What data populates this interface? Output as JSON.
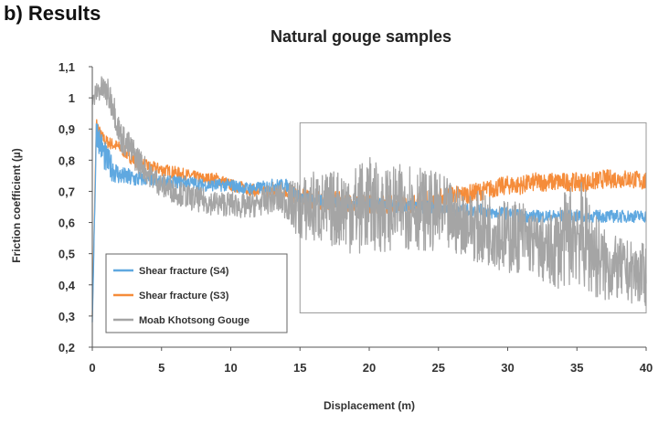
{
  "panel_label": "b) Results",
  "chart_data": {
    "type": "line",
    "title": "Natural gouge samples",
    "xlabel": "Displacement (m)",
    "ylabel": "Friction coefficient (µ)",
    "xlim": [
      0,
      40
    ],
    "ylim": [
      0.2,
      1.1
    ],
    "x_ticks": [
      0,
      5,
      10,
      15,
      20,
      25,
      30,
      35,
      40
    ],
    "x_tick_labels": [
      "0",
      "5",
      "10",
      "15",
      "20",
      "25",
      "30",
      "35",
      "40"
    ],
    "y_ticks": [
      0.2,
      0.3,
      0.4,
      0.5,
      0.6,
      0.7,
      0.8,
      0.9,
      1.0,
      1.1
    ],
    "y_tick_labels": [
      "0,2",
      "0,3",
      "0,4",
      "0,5",
      "0,6",
      "0,7",
      "0,8",
      "0,9",
      "1",
      "1,1"
    ],
    "grid": false,
    "legend_position": "bottom-left",
    "zoom_box": {
      "x": [
        15,
        40
      ],
      "y": [
        0.31,
        0.92
      ]
    },
    "series": [
      {
        "name": "Shear fracture  (S4)",
        "color": "#5fa8e0",
        "x": [
          0,
          0.3,
          0.6,
          1,
          1.5,
          2,
          3,
          4,
          5,
          6,
          7,
          8,
          9,
          10,
          11,
          12,
          13,
          14,
          15,
          16,
          17,
          18,
          19,
          20,
          21,
          22,
          23,
          24,
          25,
          26,
          27,
          28,
          29,
          30,
          31,
          32,
          33,
          34,
          35,
          36,
          37,
          38,
          39,
          40
        ],
        "y": [
          0.28,
          0.9,
          0.85,
          0.8,
          0.77,
          0.75,
          0.74,
          0.74,
          0.73,
          0.73,
          0.73,
          0.72,
          0.72,
          0.72,
          0.71,
          0.71,
          0.72,
          0.72,
          0.68,
          0.67,
          0.67,
          0.66,
          0.66,
          0.66,
          0.66,
          0.65,
          0.65,
          0.65,
          0.65,
          0.64,
          0.64,
          0.64,
          0.63,
          0.63,
          0.62,
          0.62,
          0.62,
          0.62,
          0.62,
          0.62,
          0.62,
          0.62,
          0.62,
          0.62
        ],
        "spread": [
          0,
          0.05,
          0.05,
          0.05,
          0.04,
          0.03,
          0.03,
          0.02,
          0.02,
          0.02,
          0.02,
          0.02,
          0.02,
          0.02,
          0.02,
          0.02,
          0.02,
          0.02,
          0.02,
          0.02,
          0.02,
          0.02,
          0.02,
          0.02,
          0.02,
          0.02,
          0.02,
          0.02,
          0.02,
          0.02,
          0.02,
          0.02,
          0.02,
          0.02,
          0.02,
          0.02,
          0.02,
          0.02,
          0.02,
          0.02,
          0.02,
          0.02,
          0.02,
          0.02
        ]
      },
      {
        "name": "Shear fracture (S3)",
        "color": "#f58c3a",
        "x": [
          0,
          0.3,
          0.6,
          1,
          1.5,
          2,
          3,
          4,
          5,
          6,
          7,
          8,
          9,
          10,
          11,
          12,
          13,
          14,
          15,
          16,
          17,
          18,
          19,
          20,
          21,
          22,
          23,
          24,
          25,
          26,
          27,
          28,
          29,
          30,
          31,
          32,
          33,
          34,
          35,
          36,
          37,
          38,
          39,
          40
        ],
        "y": [
          0.3,
          0.92,
          0.88,
          0.86,
          0.85,
          0.84,
          0.8,
          0.78,
          0.77,
          0.76,
          0.75,
          0.74,
          0.74,
          0.72,
          0.71,
          0.7,
          0.7,
          0.7,
          0.68,
          0.67,
          0.67,
          0.67,
          0.66,
          0.66,
          0.66,
          0.66,
          0.66,
          0.67,
          0.68,
          0.69,
          0.69,
          0.7,
          0.71,
          0.72,
          0.72,
          0.73,
          0.73,
          0.73,
          0.73,
          0.73,
          0.74,
          0.74,
          0.74,
          0.73
        ],
        "spread": [
          0,
          0.02,
          0.02,
          0.02,
          0.02,
          0.02,
          0.02,
          0.02,
          0.02,
          0.02,
          0.02,
          0.02,
          0.02,
          0.02,
          0.02,
          0.02,
          0.02,
          0.02,
          0.03,
          0.03,
          0.03,
          0.03,
          0.03,
          0.03,
          0.03,
          0.03,
          0.03,
          0.03,
          0.03,
          0.03,
          0.03,
          0.03,
          0.03,
          0.03,
          0.03,
          0.03,
          0.03,
          0.03,
          0.03,
          0.03,
          0.03,
          0.03,
          0.03,
          0.03
        ]
      },
      {
        "name": "Moab Khotsong Gouge",
        "color": "#a5a5a5",
        "x": [
          0,
          0.3,
          0.6,
          1,
          1.5,
          2,
          3,
          4,
          5,
          6,
          7,
          8,
          9,
          10,
          11,
          12,
          13,
          14,
          15,
          16,
          17,
          18,
          19,
          20,
          21,
          22,
          23,
          24,
          25,
          26,
          27,
          28,
          29,
          30,
          31,
          32,
          33,
          34,
          35,
          36,
          37,
          38,
          39,
          40
        ],
        "y": [
          0.98,
          1.02,
          1.03,
          1.02,
          0.98,
          0.88,
          0.82,
          0.76,
          0.72,
          0.7,
          0.68,
          0.67,
          0.66,
          0.66,
          0.65,
          0.66,
          0.68,
          0.67,
          0.64,
          0.65,
          0.64,
          0.65,
          0.64,
          0.66,
          0.64,
          0.65,
          0.66,
          0.64,
          0.63,
          0.61,
          0.6,
          0.58,
          0.58,
          0.55,
          0.56,
          0.53,
          0.5,
          0.54,
          0.58,
          0.52,
          0.46,
          0.45,
          0.44,
          0.43
        ],
        "spread": [
          0.02,
          0.04,
          0.04,
          0.05,
          0.05,
          0.05,
          0.05,
          0.04,
          0.04,
          0.04,
          0.04,
          0.04,
          0.04,
          0.04,
          0.04,
          0.04,
          0.05,
          0.06,
          0.1,
          0.12,
          0.12,
          0.13,
          0.15,
          0.15,
          0.14,
          0.13,
          0.15,
          0.13,
          0.13,
          0.12,
          0.1,
          0.12,
          0.12,
          0.12,
          0.12,
          0.1,
          0.12,
          0.15,
          0.18,
          0.16,
          0.12,
          0.1,
          0.1,
          0.1
        ]
      }
    ]
  }
}
